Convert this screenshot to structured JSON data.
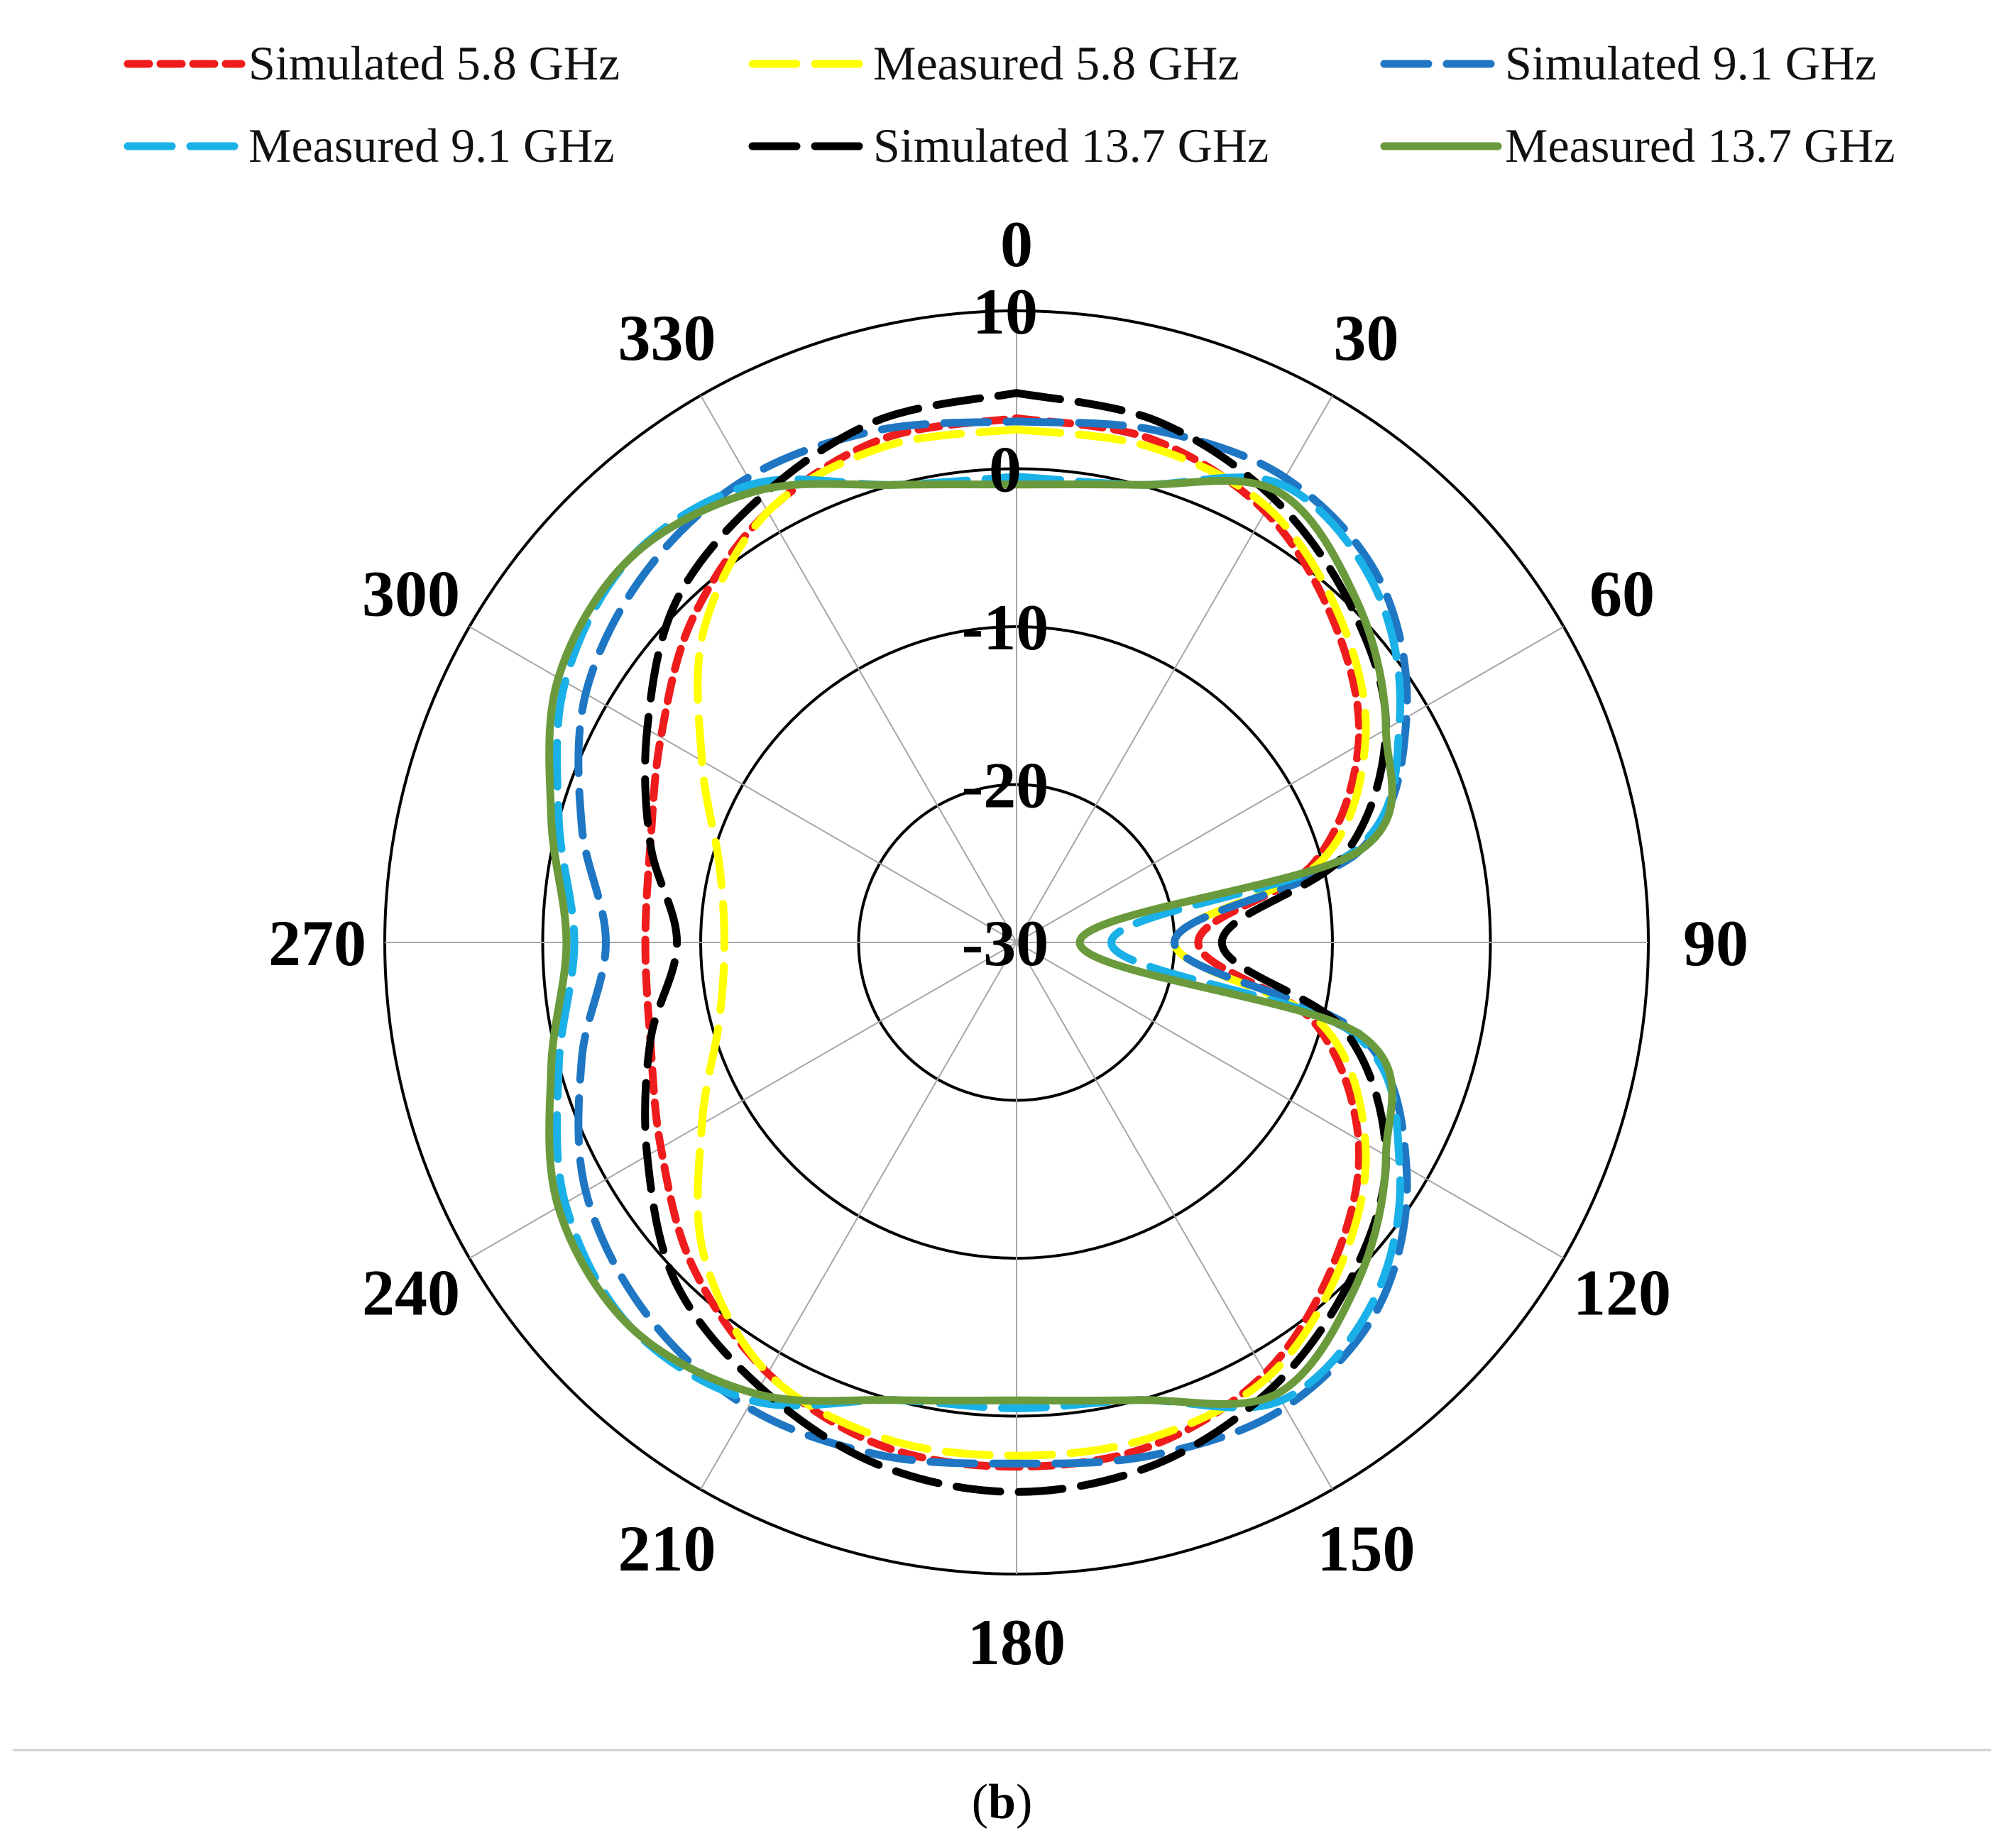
{
  "chart_data": {
    "type": "polar-line",
    "panel_label": {
      "open": "(",
      "letter": "b",
      "close": ")"
    },
    "angle_ticks": [
      0,
      30,
      60,
      90,
      120,
      150,
      180,
      210,
      240,
      270,
      300,
      330
    ],
    "radial_ticks": [
      10,
      0,
      -10,
      -20,
      -30
    ],
    "rlim": [
      -30,
      10
    ],
    "angle_direction": "clockwise",
    "zero_angle": "top",
    "grid": true,
    "legend_position": "top",
    "angles": [
      0,
      15,
      30,
      45,
      60,
      75,
      90,
      105,
      120,
      135,
      150,
      165,
      180,
      195,
      210,
      225,
      240,
      255,
      270,
      285,
      300,
      315,
      330,
      345,
      360
    ],
    "series": [
      {
        "name": "Simulated 5.8 GHz",
        "color": "#ee1c1c",
        "dash": "short",
        "values": [
          3.2,
          3.0,
          1.5,
          -1.5,
          -5.0,
          -10.5,
          -18.5,
          -10.5,
          -5.0,
          -1.5,
          1.5,
          3.0,
          3.2,
          3.0,
          1.5,
          -1.0,
          -4.0,
          -6.0,
          -6.5,
          -6.0,
          -4.0,
          -1.0,
          1.5,
          3.0,
          3.2
        ]
      },
      {
        "name": "Measured 5.8 GHz",
        "color": "#ffff00",
        "dash": "long",
        "values": [
          2.5,
          2.5,
          1.8,
          -1.0,
          -4.5,
          -10.0,
          -20.0,
          -10.0,
          -4.5,
          -1.0,
          1.8,
          2.5,
          2.5,
          2.5,
          1.5,
          -2.0,
          -7.0,
          -10.5,
          -11.5,
          -10.5,
          -7.0,
          -2.0,
          1.5,
          2.5,
          2.5
        ]
      },
      {
        "name": "Simulated 9.1 GHz",
        "color": "#1f77c4",
        "dash": "long",
        "values": [
          3.0,
          3.6,
          4.0,
          2.5,
          -1.5,
          -7.5,
          -20.0,
          -7.5,
          -1.5,
          2.5,
          4.0,
          3.6,
          3.0,
          3.6,
          4.0,
          3.2,
          1.5,
          -1.5,
          -4.0,
          -1.5,
          1.5,
          3.2,
          4.0,
          3.6,
          3.0
        ]
      },
      {
        "name": "Measured 9.1 GHz",
        "color": "#1ab0e8",
        "dash": "long",
        "values": [
          -0.5,
          0.0,
          3.5,
          2.0,
          -2.0,
          -8.0,
          -24.0,
          -8.0,
          -2.0,
          2.0,
          3.5,
          0.0,
          -0.5,
          0.0,
          3.5,
          4.5,
          3.0,
          0.0,
          -2.0,
          0.0,
          3.0,
          4.5,
          3.5,
          0.0,
          -0.5
        ]
      },
      {
        "name": "Simulated 13.7 GHz",
        "color": "#000000",
        "dash": "long",
        "values": [
          4.8,
          4.2,
          2.5,
          0.0,
          -3.0,
          -8.5,
          -17.0,
          -8.5,
          -3.0,
          0.0,
          2.5,
          4.2,
          4.8,
          4.2,
          2.5,
          0.5,
          -3.0,
          -6.0,
          -8.5,
          -6.0,
          -3.0,
          0.5,
          2.5,
          4.2,
          4.8
        ]
      },
      {
        "name": "Measured 13.7 GHz",
        "color": "#6a9a3c",
        "dash": "solid",
        "values": [
          -1.0,
          0.0,
          3.0,
          0.5,
          -3.0,
          -7.5,
          -26.0,
          -7.5,
          -3.0,
          0.5,
          3.0,
          0.0,
          -1.0,
          0.0,
          3.0,
          4.5,
          3.5,
          0.5,
          -1.5,
          0.5,
          3.5,
          4.5,
          3.0,
          0.0,
          -1.0
        ]
      }
    ]
  }
}
